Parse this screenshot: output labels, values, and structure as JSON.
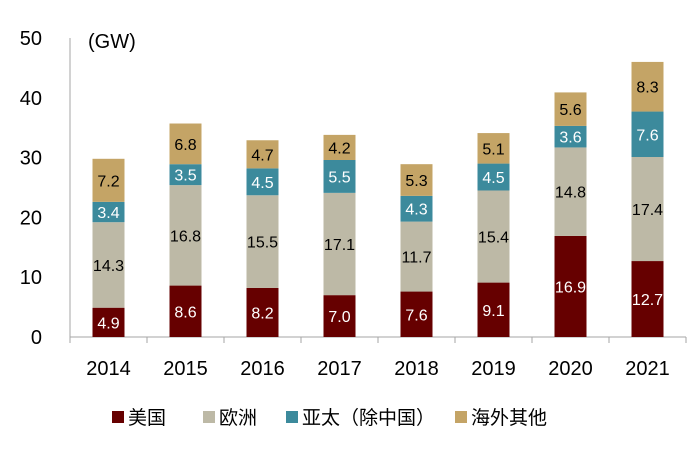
{
  "chart_data": {
    "type": "bar",
    "stacked": true,
    "unit_label": "(GW)",
    "categories": [
      "2014",
      "2015",
      "2016",
      "2017",
      "2018",
      "2019",
      "2020",
      "2021"
    ],
    "ylim": [
      0,
      50
    ],
    "yticks": [
      0,
      10,
      20,
      30,
      40,
      50
    ],
    "grid": false,
    "legend_position": "bottom",
    "series": [
      {
        "name": "美国",
        "color": "#660000",
        "label_color": "#ffffff",
        "values": [
          4.9,
          8.6,
          8.2,
          7.0,
          7.6,
          9.1,
          16.9,
          12.7
        ]
      },
      {
        "name": "欧洲",
        "color": "#BDB9A6",
        "label_color": "#000000",
        "values": [
          14.3,
          16.8,
          15.5,
          17.1,
          11.7,
          15.4,
          14.8,
          17.4
        ]
      },
      {
        "name": "亚太（除中国）",
        "color": "#3C8A9C",
        "label_color": "#ffffff",
        "values": [
          3.4,
          3.5,
          4.5,
          5.5,
          4.3,
          4.5,
          3.6,
          7.6
        ]
      },
      {
        "name": "海外其他",
        "color": "#C4A466",
        "label_color": "#000000",
        "values": [
          7.2,
          6.8,
          4.7,
          4.2,
          5.3,
          5.1,
          5.6,
          8.3
        ]
      }
    ]
  }
}
